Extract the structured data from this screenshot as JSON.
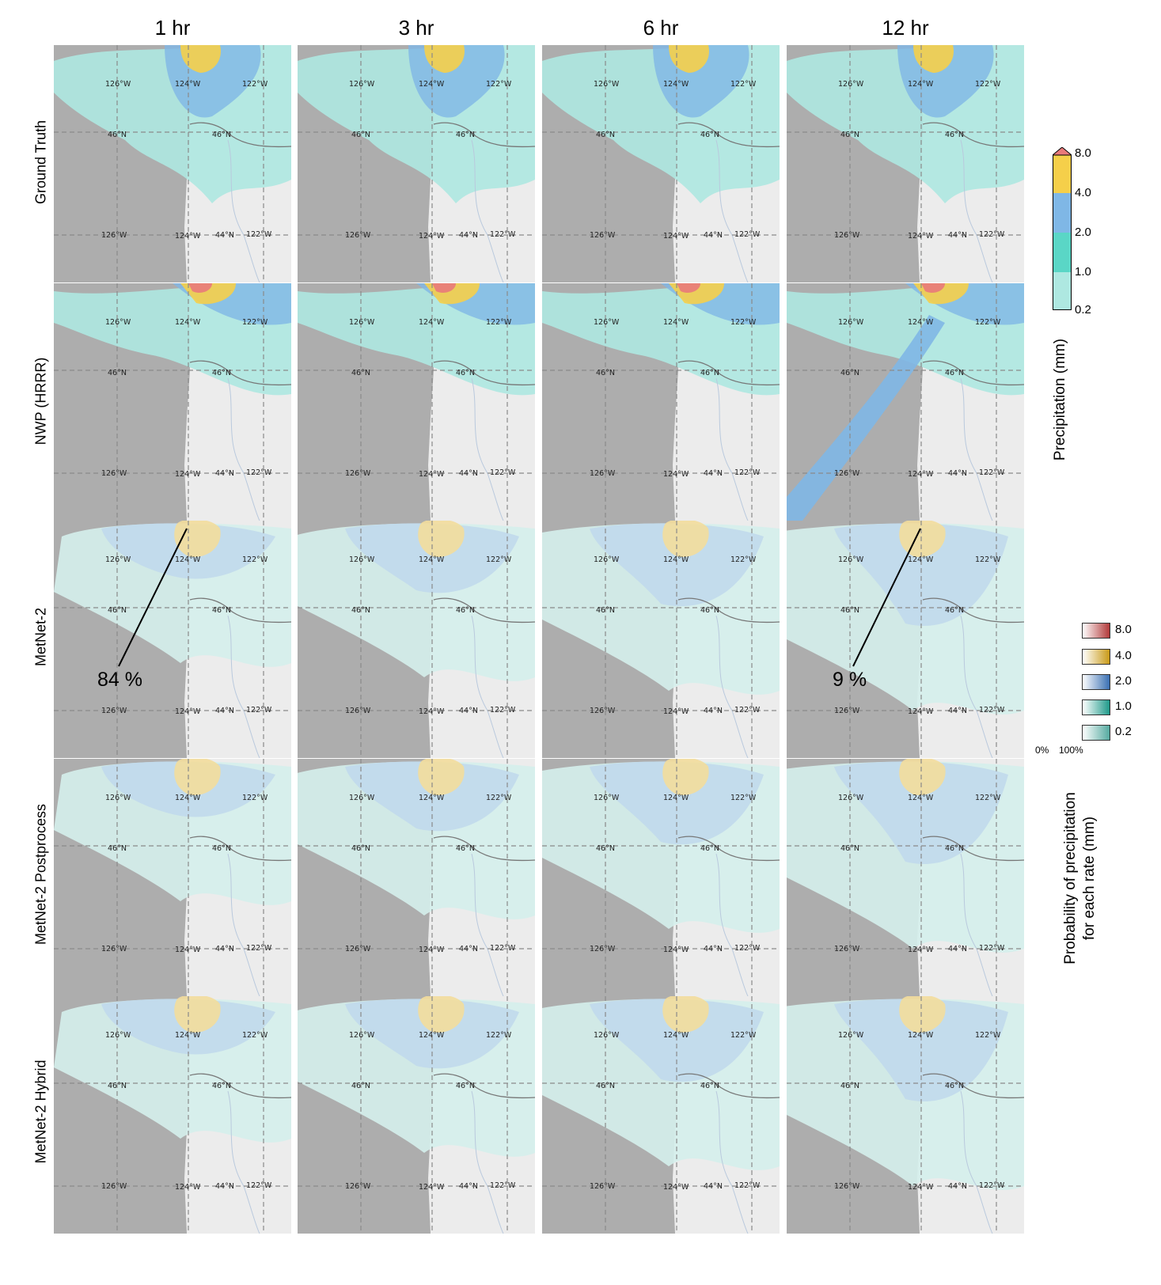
{
  "columns": [
    "1 hr",
    "3 hr",
    "6 hr",
    "12 hr"
  ],
  "rows": [
    "Ground Truth",
    "NWP (HRRR)",
    "MetNet-2",
    "MetNet-2 Postprocess",
    "MetNet-2 Hybrid"
  ],
  "map_ticks": {
    "lon_126": "126°W",
    "lon_124": "124°W",
    "lon_122": "122°W",
    "lat_46": "46°N",
    "lat_44": "44°N"
  },
  "colorbar": {
    "label": "Precipitation (mm)",
    "ticks": [
      "8.0",
      "4.0",
      "2.0",
      "1.0",
      "0.2"
    ],
    "colors": {
      "c8": "#e97a7a",
      "c4": "#f5cf4a",
      "c2": "#7fb7e6",
      "c1": "#5ad6c6",
      "c02": "#aee8e1"
    }
  },
  "prob_legend": {
    "label_line1": "Probability of precipitation",
    "label_line2": "for each rate (mm)",
    "items": [
      {
        "value": "8.0",
        "color_dark": "#b23a3a"
      },
      {
        "value": "4.0",
        "color_dark": "#c99a17"
      },
      {
        "value": "2.0",
        "color_dark": "#3a70b3"
      },
      {
        "value": "1.0",
        "color_dark": "#1f9a8a"
      },
      {
        "value": "0.2",
        "color_dark": "#55aaa0"
      }
    ],
    "axis_min": "0%",
    "axis_max": "100%"
  },
  "annotations": {
    "left": "84 %",
    "right": "9 %"
  },
  "palette": {
    "ocean": "#adadad",
    "land": "#ececec",
    "grid": "#8a8a8a"
  }
}
